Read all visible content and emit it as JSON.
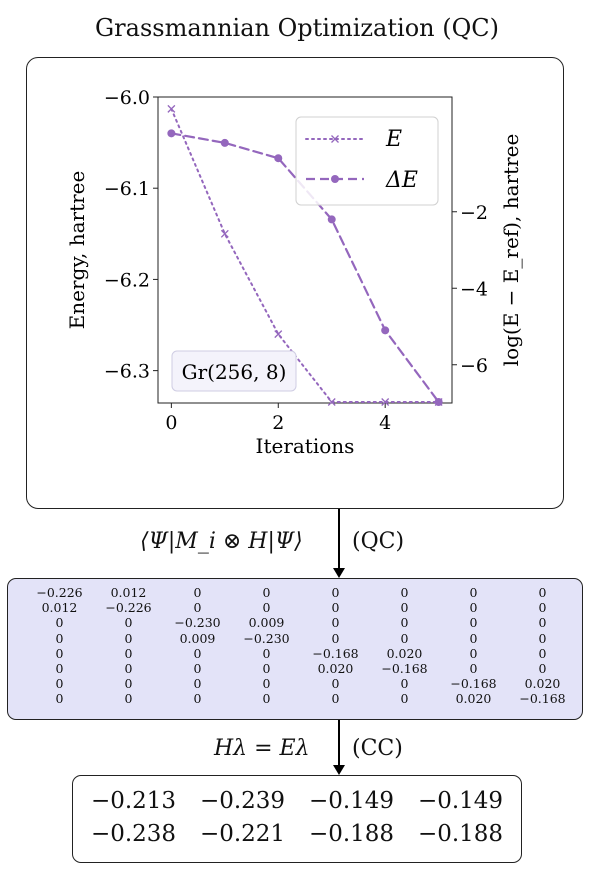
{
  "title": "Grassmannian Optimization (QC)",
  "chart_data": {
    "type": "line",
    "xlabel": "Iterations",
    "ylabel_left": "Energy, hartree",
    "ylabel_right": "log(E − E_ref), hartree",
    "x_ticks": [
      0,
      2,
      4
    ],
    "y_left_ticks": [
      "−6.0",
      "−6.1",
      "−6.2",
      "−6.3"
    ],
    "y_right_ticks": [
      "−2",
      "−4",
      "−6"
    ],
    "xlim": [
      -0.25,
      5.25
    ],
    "ylim_left": [
      -6.3355,
      -6.0
    ],
    "ylim_right": [
      -7.0,
      1.0
    ],
    "annotation": "Gr(256, 8)",
    "color": "#9467bd",
    "series": [
      {
        "name": "E",
        "axis": "left",
        "style": "dotted",
        "marker": "x",
        "x": [
          0,
          1,
          2,
          3,
          4,
          5
        ],
        "values": [
          -6.013,
          -6.15,
          -6.26,
          -6.335,
          -6.34,
          -6.34
        ]
      },
      {
        "name": "ΔE",
        "axis": "right",
        "style": "dashed",
        "marker": "o",
        "x": [
          0,
          1,
          2,
          3,
          4,
          5
        ],
        "values": [
          0.05,
          -0.2,
          -0.6,
          -2.2,
          -5.1,
          -7.1
        ]
      }
    ],
    "legend": [
      "E",
      "ΔE"
    ],
    "legend_position": "top-right"
  },
  "arrow1_label": "⟨Ψ|M_i ⊗ H|Ψ⟩",
  "arrow1_tag": "(QC)",
  "matrix": [
    [
      "−0.226",
      "0.012",
      "0",
      "0",
      "0",
      "0",
      "0",
      "0"
    ],
    [
      "0.012",
      "−0.226",
      "0",
      "0",
      "0",
      "0",
      "0",
      "0"
    ],
    [
      "0",
      "0",
      "−0.230",
      "0.009",
      "0",
      "0",
      "0",
      "0"
    ],
    [
      "0",
      "0",
      "0.009",
      "−0.230",
      "0",
      "0",
      "0",
      "0"
    ],
    [
      "0",
      "0",
      "0",
      "0",
      "−0.168",
      "0.020",
      "0",
      "0"
    ],
    [
      "0",
      "0",
      "0",
      "0",
      "0.020",
      "−0.168",
      "0",
      "0"
    ],
    [
      "0",
      "0",
      "0",
      "0",
      "0",
      "0",
      "−0.168",
      "0.020"
    ],
    [
      "0",
      "0",
      "0",
      "0",
      "0",
      "0",
      "0.020",
      "−0.168"
    ]
  ],
  "arrow2_label": "Hλ = Eλ",
  "arrow2_tag": "(CC)",
  "eigenvalues": [
    [
      "−0.213",
      "−0.239",
      "−0.149",
      "−0.149"
    ],
    [
      "−0.238",
      "−0.221",
      "−0.188",
      "−0.188"
    ]
  ]
}
